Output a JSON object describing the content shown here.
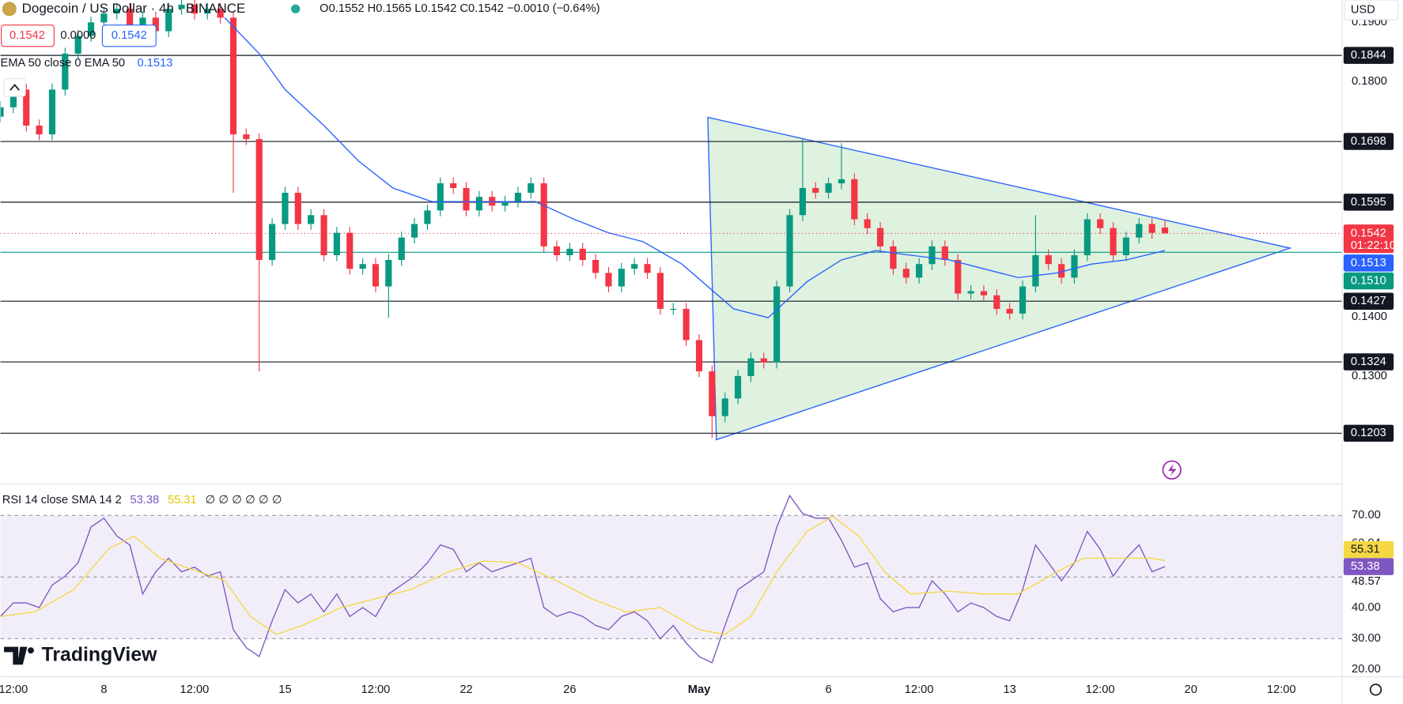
{
  "chart_data": {
    "type": "candlestick",
    "symbol": "Dogecoin / US Dollar · 4h · BINANCE",
    "ohlc_text": "O0.1552 H0.1565 L0.1542 C0.1542 −0.0010 (−0.64%)",
    "quote_boxes": [
      "0.1542",
      "0.0000",
      "0.1542"
    ],
    "ema_legend": "EMA 50 close 0 EMA 50",
    "ema_value": 0.1513,
    "currency": "USD",
    "brand": "TradingView",
    "xlim": [
      0,
      311
    ],
    "xticks": [
      {
        "value": 3,
        "label": "12:00"
      },
      {
        "value": 24,
        "label": "8"
      },
      {
        "value": 45,
        "label": "12:00"
      },
      {
        "value": 66,
        "label": "15"
      },
      {
        "value": 87,
        "label": "12:00"
      },
      {
        "value": 108,
        "label": "22"
      },
      {
        "value": 132,
        "label": "26"
      },
      {
        "value": 162,
        "label": "May"
      },
      {
        "value": 192,
        "label": "6"
      },
      {
        "value": 213,
        "label": "12:00"
      },
      {
        "value": 234,
        "label": "13"
      },
      {
        "value": 255,
        "label": "12:00"
      },
      {
        "value": 276,
        "label": "20"
      },
      {
        "value": 297,
        "label": "12:00"
      }
    ],
    "ylim": [
      0.1118,
      0.1938
    ],
    "yticks": [
      {
        "value": 0.19,
        "label": "0.1900"
      },
      {
        "value": 0.18,
        "label": "0.1800"
      },
      {
        "value": 0.14,
        "label": "0.1400"
      },
      {
        "value": 0.13,
        "label": "0.1300"
      }
    ],
    "up_color": "#089981",
    "down_color": "#f23645",
    "x": [
      0,
      3,
      6,
      9,
      12,
      15,
      18,
      21,
      24,
      27,
      30,
      33,
      36,
      39,
      42,
      45,
      48,
      51,
      54,
      57,
      60,
      63,
      66,
      69,
      72,
      75,
      78,
      81,
      84,
      87,
      90,
      93,
      96,
      99,
      102,
      105,
      108,
      111,
      114,
      117,
      120,
      123,
      126,
      129,
      132,
      135,
      138,
      141,
      144,
      147,
      150,
      153,
      156,
      159,
      162,
      165,
      168,
      171,
      174,
      177,
      180,
      183,
      186,
      189,
      192,
      195,
      198,
      201,
      204,
      207,
      210,
      213,
      216,
      219,
      222,
      225,
      228,
      231,
      234,
      237,
      240,
      243,
      246,
      249,
      252,
      255,
      258,
      261,
      264,
      267,
      270
    ],
    "open": [
      0.174,
      0.1756,
      0.1786,
      0.1725,
      0.171,
      0.1786,
      0.1847,
      0.1877,
      0.19,
      0.1915,
      0.1923,
      0.1892,
      0.1908,
      0.1885,
      0.1923,
      0.193,
      0.1915,
      0.1923,
      0.1908,
      0.171,
      0.1702,
      0.1497,
      0.1558,
      0.1611,
      0.1558,
      0.1573,
      0.1505,
      0.1543,
      0.1482,
      0.149,
      0.1452,
      0.1497,
      0.1535,
      0.1558,
      0.1581,
      0.1627,
      0.1619,
      0.1581,
      0.1604,
      0.1589,
      0.1596,
      0.1611,
      0.1627,
      0.152,
      0.1505,
      0.1516,
      0.1497,
      0.1475,
      0.1452,
      0.1482,
      0.149,
      0.1475,
      0.1414,
      0.1414,
      0.1361,
      0.1308,
      0.1232,
      0.1262,
      0.13,
      0.133,
      0.1323,
      0.1452,
      0.1573,
      0.1619,
      0.1611,
      0.1627,
      0.1634,
      0.1566,
      0.1551,
      0.152,
      0.1482,
      0.1467,
      0.149,
      0.152,
      0.1497,
      0.144,
      0.1444,
      0.1437,
      0.1414,
      0.1406,
      0.1452,
      0.1505,
      0.149,
      0.1467,
      0.1505,
      0.1566,
      0.1551,
      0.1505,
      0.1535,
      0.1558,
      0.1552
    ],
    "high": [
      0.1766,
      0.1796,
      0.1796,
      0.1735,
      0.1796,
      0.1857,
      0.1887,
      0.191,
      0.1925,
      0.1933,
      0.1933,
      0.1918,
      0.1918,
      0.1933,
      0.194,
      0.194,
      0.1933,
      0.1933,
      0.1918,
      0.172,
      0.1712,
      0.1568,
      0.1621,
      0.1621,
      0.1583,
      0.1583,
      0.1553,
      0.1553,
      0.15,
      0.15,
      0.1507,
      0.1545,
      0.1568,
      0.1591,
      0.1637,
      0.1637,
      0.1629,
      0.1614,
      0.1614,
      0.1606,
      0.1621,
      0.1637,
      0.1637,
      0.153,
      0.1526,
      0.1526,
      0.1507,
      0.1485,
      0.1492,
      0.15,
      0.15,
      0.1485,
      0.1424,
      0.1424,
      0.1371,
      0.1318,
      0.1272,
      0.131,
      0.134,
      0.134,
      0.1462,
      0.1583,
      0.1703,
      0.1629,
      0.1637,
      0.1695,
      0.1644,
      0.1576,
      0.1561,
      0.153,
      0.1492,
      0.15,
      0.153,
      0.153,
      0.1507,
      0.1454,
      0.1454,
      0.1447,
      0.1424,
      0.1462,
      0.1573,
      0.1515,
      0.15,
      0.1515,
      0.1576,
      0.1576,
      0.1561,
      0.1545,
      0.1568,
      0.1568,
      0.1565
    ],
    "low": [
      0.173,
      0.1746,
      0.1715,
      0.17,
      0.17,
      0.1776,
      0.1837,
      0.1867,
      0.189,
      0.1905,
      0.1882,
      0.1882,
      0.1875,
      0.1875,
      0.1913,
      0.1905,
      0.1905,
      0.1898,
      0.1611,
      0.1692,
      0.1308,
      0.1487,
      0.1548,
      0.1548,
      0.1548,
      0.1495,
      0.1495,
      0.1472,
      0.1472,
      0.1442,
      0.1399,
      0.1487,
      0.1525,
      0.1548,
      0.1571,
      0.1609,
      0.1571,
      0.1571,
      0.1579,
      0.1579,
      0.1586,
      0.1601,
      0.151,
      0.1495,
      0.1495,
      0.1487,
      0.1465,
      0.1442,
      0.1442,
      0.1472,
      0.1465,
      0.1404,
      0.1404,
      0.1351,
      0.1298,
      0.1195,
      0.1222,
      0.1252,
      0.129,
      0.1313,
      0.1313,
      0.1442,
      0.1563,
      0.1601,
      0.1601,
      0.1617,
      0.1556,
      0.1541,
      0.151,
      0.1472,
      0.1457,
      0.1457,
      0.148,
      0.1487,
      0.143,
      0.143,
      0.1427,
      0.1404,
      0.1396,
      0.1396,
      0.1442,
      0.148,
      0.1457,
      0.1457,
      0.1495,
      0.1541,
      0.1495,
      0.1495,
      0.1525,
      0.1533,
      0.1542
    ],
    "close": [
      0.1756,
      0.1786,
      0.1725,
      0.171,
      0.1786,
      0.1847,
      0.1877,
      0.19,
      0.1915,
      0.1923,
      0.1892,
      0.1908,
      0.1885,
      0.1923,
      0.193,
      0.1915,
      0.1923,
      0.1908,
      0.171,
      0.1702,
      0.1497,
      0.1558,
      0.1611,
      0.1558,
      0.1573,
      0.1505,
      0.1543,
      0.1482,
      0.149,
      0.1452,
      0.1497,
      0.1535,
      0.1558,
      0.1581,
      0.1627,
      0.1619,
      0.1581,
      0.1604,
      0.1589,
      0.1596,
      0.1611,
      0.1627,
      0.152,
      0.1505,
      0.1516,
      0.1497,
      0.1475,
      0.1452,
      0.1482,
      0.149,
      0.1475,
      0.1414,
      0.1414,
      0.1361,
      0.1308,
      0.1232,
      0.1262,
      0.13,
      0.133,
      0.1323,
      0.1452,
      0.1573,
      0.1619,
      0.1611,
      0.1627,
      0.1634,
      0.1566,
      0.1551,
      0.152,
      0.1482,
      0.1467,
      0.149,
      0.152,
      0.1497,
      0.144,
      0.1444,
      0.1437,
      0.1414,
      0.1406,
      0.1452,
      0.1505,
      0.149,
      0.1467,
      0.1505,
      0.1566,
      0.1551,
      0.1505,
      0.1535,
      0.1558,
      0.1543,
      0.1542
    ],
    "ema": {
      "color": "#2962ff",
      "x": [
        52,
        60,
        66,
        75,
        83,
        91,
        100,
        108,
        116,
        124,
        133,
        141,
        149,
        158,
        164,
        170,
        178,
        187,
        195,
        203,
        211,
        220,
        228,
        236,
        245,
        253,
        261,
        270
      ],
      "values": [
        0.1908,
        0.1847,
        0.1786,
        0.1725,
        0.1665,
        0.1619,
        0.1596,
        0.1596,
        0.1596,
        0.1596,
        0.1566,
        0.1543,
        0.1528,
        0.149,
        0.1452,
        0.1414,
        0.1399,
        0.146,
        0.1497,
        0.1513,
        0.1505,
        0.1497,
        0.1482,
        0.1467,
        0.1475,
        0.149,
        0.1497,
        0.1513
      ]
    },
    "levels": [
      0.1844,
      0.1698,
      0.1595,
      0.1427,
      0.1324,
      0.1203
    ],
    "last_price": 0.1542,
    "countdown": "01:22:10",
    "support": {
      "value": 0.151,
      "label": "0.1510"
    },
    "triangle": {
      "x": [
        164,
        166,
        299
      ],
      "y": [
        0.1739,
        0.1192,
        0.1517
      ]
    },
    "rsi": {
      "legend": "RSI 14 close SMA 14 2",
      "value": 53.38,
      "sma_value": 55.31,
      "na_values": "∅ ∅ ∅ ∅ ∅ ∅",
      "color": "#7e57c2",
      "ylim": [
        17.8,
        80.1
      ],
      "yticks": [
        {
          "value": 70,
          "label": "70.00"
        },
        60.94,
        48.57,
        {
          "value": 40,
          "label": "40.00"
        },
        {
          "value": 30,
          "label": "30.00"
        },
        {
          "value": 20,
          "label": "20.00"
        }
      ],
      "bands": [
        70,
        50,
        30
      ],
      "values": [
        37.2,
        41.6,
        41.6,
        40.1,
        47.4,
        50.3,
        54.6,
        66.2,
        69.1,
        63.3,
        60.4,
        44.5,
        51.7,
        56.1,
        51.7,
        53.2,
        50.3,
        51.7,
        32.9,
        27.1,
        24.2,
        35.8,
        45.9,
        41.6,
        44.5,
        38.7,
        44.5,
        37.2,
        40.1,
        37.2,
        44.5,
        47.4,
        50.3,
        54.6,
        60.4,
        59,
        51.7,
        54.6,
        51.7,
        53.2,
        54.6,
        56.1,
        40.1,
        37.2,
        38.7,
        37.2,
        34.3,
        32.9,
        37.2,
        38.7,
        35.8,
        30,
        34.3,
        28.6,
        24.2,
        22.2,
        34.3,
        45.9,
        48.8,
        51.7,
        66.2,
        76.4,
        70.6,
        69.1,
        69.1,
        61.9,
        53.2,
        54.6,
        43,
        38.7,
        40.1,
        40.1,
        48.8,
        44.5,
        38.7,
        41.6,
        40.1,
        37.2,
        35.8,
        45.9,
        60.4,
        54.6,
        48.8,
        54.6,
        64.8,
        59,
        50.3,
        56.1,
        60.4,
        51.7,
        53.38
      ],
      "sma": {
        "color": "#f5d742",
        "x": [
          0,
          8,
          17,
          25,
          31,
          37,
          46,
          52,
          58,
          64,
          70,
          79,
          87,
          95,
          104,
          112,
          120,
          129,
          137,
          145,
          153,
          162,
          168,
          174,
          180,
          187,
          193,
          199,
          205,
          211,
          220,
          228,
          236,
          245,
          251,
          259,
          267,
          270
        ],
        "values": [
          37.2,
          38.7,
          45.9,
          59,
          63.3,
          56.1,
          51.7,
          48.8,
          37.2,
          31.4,
          34.3,
          40.1,
          43,
          45.9,
          51.7,
          55.2,
          54.6,
          48.8,
          43,
          38.7,
          40.1,
          32.9,
          31.4,
          37.2,
          51.7,
          64.8,
          69.7,
          63.3,
          51.7,
          44.5,
          45.4,
          44.5,
          44.5,
          51.7,
          56.1,
          56.1,
          56.1,
          55.31
        ]
      }
    }
  }
}
